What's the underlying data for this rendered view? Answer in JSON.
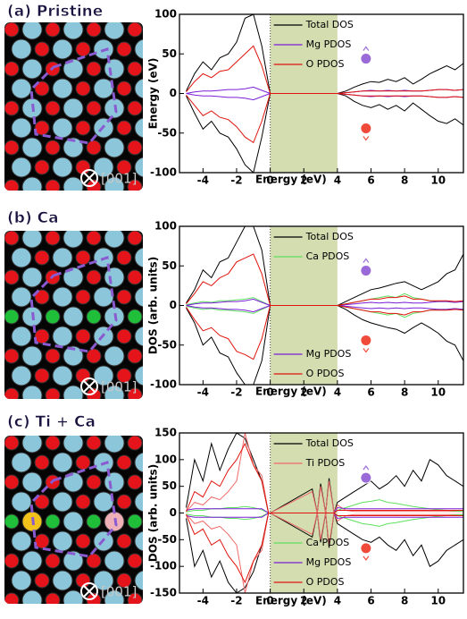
{
  "chart_data": [
    {
      "type": "line",
      "title": "(a) Pristine",
      "direction_label": "[001]",
      "xlabel": "Energy (eV)",
      "ylabel": "Energy (eV)",
      "xlim": [
        -5.4,
        11.5
      ],
      "xticks": [
        -4,
        -2,
        0,
        2,
        4,
        6,
        8,
        10
      ],
      "ylim": [
        -100,
        100
      ],
      "yticks": [
        -100,
        -50,
        0,
        50,
        100
      ],
      "shade": [
        0,
        4
      ],
      "shade_color": "#d3ddb0",
      "x": [
        -5,
        -4.5,
        -4,
        -3.5,
        -3,
        -2.5,
        -2,
        -1.5,
        -1,
        -0.5,
        0,
        4,
        4.5,
        5,
        5.5,
        6,
        6.5,
        7,
        7.5,
        8,
        8.5,
        9,
        9.5,
        10,
        10.5,
        11,
        11.5
      ],
      "series": [
        {
          "name": "Total DOS",
          "color": "#000000",
          "legend": "top",
          "values": [
            3,
            25,
            40,
            30,
            45,
            50,
            65,
            95,
            100,
            60,
            0,
            0,
            3,
            8,
            12,
            15,
            14,
            18,
            15,
            20,
            12,
            18,
            25,
            30,
            35,
            30,
            38
          ],
          "values_down": [
            -3,
            -25,
            -45,
            -35,
            -50,
            -55,
            -70,
            -90,
            -100,
            -55,
            0,
            0,
            -3,
            -10,
            -15,
            -18,
            -14,
            -20,
            -15,
            -22,
            -12,
            -20,
            -28,
            -35,
            -38,
            -32,
            -40
          ]
        },
        {
          "name": "Mg PDOS",
          "color": "#7b1fd8",
          "legend": "top",
          "values": [
            0,
            2,
            3,
            3,
            4,
            5,
            5,
            6,
            8,
            4,
            0,
            0,
            1,
            2,
            3,
            4,
            3,
            4,
            3,
            4,
            3,
            3,
            4,
            5,
            5,
            4,
            5
          ],
          "values_down": [
            0,
            -2,
            -3,
            -3,
            -4,
            -5,
            -5,
            -6,
            -8,
            -4,
            0,
            0,
            -1,
            -2,
            -3,
            -4,
            -3,
            -4,
            -3,
            -4,
            -3,
            -3,
            -4,
            -5,
            -5,
            -4,
            -5
          ]
        },
        {
          "name": "O PDOS",
          "color": "#e0140c",
          "legend": "top",
          "values": [
            2,
            15,
            25,
            20,
            28,
            30,
            40,
            50,
            60,
            35,
            0,
            0,
            1,
            2,
            3,
            3,
            3,
            3,
            3,
            3,
            3,
            3,
            4,
            5,
            5,
            4,
            5
          ],
          "values_down": [
            -2,
            -15,
            -28,
            -22,
            -30,
            -33,
            -42,
            -55,
            -62,
            -35,
            0,
            0,
            -1,
            -2,
            -3,
            -3,
            -3,
            -3,
            -3,
            -3,
            -3,
            -3,
            -4,
            -5,
            -5,
            -4,
            -5
          ]
        }
      ]
    },
    {
      "type": "line",
      "title": "(b) Ca",
      "direction_label": "[001]",
      "xlabel": "Energy (eV)",
      "ylabel": "DOS (arb. units)",
      "xlim": [
        -5.4,
        11.5
      ],
      "xticks": [
        -4,
        -2,
        0,
        2,
        4,
        6,
        8,
        10
      ],
      "ylim": [
        -100,
        100
      ],
      "yticks": [
        -100,
        -50,
        0,
        50,
        100
      ],
      "shade": [
        0,
        4
      ],
      "shade_color": "#d3ddb0",
      "x": [
        -5,
        -4.5,
        -4,
        -3.5,
        -3,
        -2.5,
        -2,
        -1.5,
        -1,
        -0.5,
        0,
        4,
        4.5,
        5,
        5.5,
        6,
        6.5,
        7,
        7.5,
        8,
        8.5,
        9,
        9.5,
        10,
        10.5,
        11,
        11.5
      ],
      "series": [
        {
          "name": "Total DOS",
          "color": "#000000",
          "legend": "top",
          "values": [
            3,
            20,
            45,
            35,
            55,
            60,
            80,
            100,
            100,
            70,
            0,
            0,
            5,
            10,
            15,
            20,
            22,
            25,
            28,
            30,
            25,
            20,
            25,
            30,
            40,
            45,
            65
          ],
          "values_down": [
            -3,
            -22,
            -50,
            -40,
            -60,
            -65,
            -85,
            -100,
            -100,
            -70,
            0,
            0,
            -5,
            -12,
            -18,
            -22,
            -25,
            -28,
            -30,
            -35,
            -28,
            -22,
            -28,
            -35,
            -45,
            -50,
            -70
          ]
        },
        {
          "name": "Ca PDOS",
          "color": "#5fe05f",
          "legend": "top",
          "values": [
            1,
            3,
            5,
            4,
            6,
            6,
            7,
            8,
            10,
            5,
            0,
            0,
            2,
            4,
            6,
            8,
            10,
            12,
            10,
            15,
            10,
            8,
            6,
            5,
            5,
            4,
            5
          ],
          "values_down": [
            -1,
            -3,
            -5,
            -4,
            -6,
            -6,
            -7,
            -8,
            -10,
            -5,
            0,
            0,
            -2,
            -4,
            -6,
            -8,
            -10,
            -12,
            -10,
            -15,
            -10,
            -8,
            -6,
            -5,
            -5,
            -4,
            -5
          ]
        },
        {
          "name": "Mg PDOS",
          "color": "#7b1fd8",
          "legend": "bottom",
          "values": [
            0,
            2,
            3,
            3,
            4,
            5,
            5,
            6,
            8,
            4,
            0,
            0,
            1,
            2,
            3,
            4,
            3,
            4,
            3,
            4,
            3,
            3,
            4,
            5,
            5,
            4,
            5
          ],
          "values_down": [
            0,
            -2,
            -3,
            -3,
            -4,
            -5,
            -5,
            -6,
            -8,
            -4,
            0,
            0,
            -1,
            -2,
            -3,
            -4,
            -3,
            -4,
            -3,
            -4,
            -3,
            -3,
            -4,
            -5,
            -5,
            -4,
            -5
          ]
        },
        {
          "name": "O PDOS",
          "color": "#e0140c",
          "legend": "bottom",
          "values": [
            2,
            15,
            30,
            25,
            35,
            40,
            55,
            60,
            65,
            40,
            0,
            0,
            2,
            4,
            6,
            8,
            8,
            10,
            10,
            12,
            8,
            8,
            6,
            6,
            6,
            5,
            6
          ],
          "values_down": [
            -2,
            -18,
            -32,
            -28,
            -38,
            -42,
            -58,
            -62,
            -68,
            -42,
            0,
            0,
            -2,
            -4,
            -6,
            -8,
            -8,
            -10,
            -10,
            -12,
            -8,
            -8,
            -6,
            -6,
            -6,
            -5,
            -6
          ]
        }
      ]
    },
    {
      "type": "line",
      "title": "(c) Ti + Ca",
      "direction_label": "[001]",
      "xlabel": "Energy (eV)",
      "ylabel": "DOS (arb. units)",
      "xlim": [
        -5.4,
        11.5
      ],
      "xticks": [
        -4,
        -2,
        0,
        2,
        4,
        6,
        8,
        10
      ],
      "ylim": [
        -150,
        150
      ],
      "yticks": [
        -150,
        -100,
        -50,
        0,
        50,
        100,
        150
      ],
      "shade": [
        0,
        4
      ],
      "shade_color": "#d3ddb0",
      "x": [
        -5,
        -4.5,
        -4,
        -3.5,
        -3,
        -2.5,
        -2,
        -1.5,
        -1,
        -0.5,
        -0.1,
        0,
        2.5,
        2.8,
        3,
        3.3,
        3.5,
        3.8,
        4,
        4.5,
        5,
        5.5,
        6,
        6.5,
        7,
        7.5,
        8,
        8.5,
        9,
        9.5,
        10,
        10.5,
        11,
        11.5
      ],
      "series": [
        {
          "name": "Total DOS",
          "color": "#000000",
          "legend": "top",
          "values": [
            10,
            100,
            60,
            130,
            80,
            120,
            150,
            140,
            100,
            60,
            0,
            0,
            45,
            0,
            55,
            0,
            65,
            0,
            20,
            30,
            40,
            50,
            60,
            45,
            55,
            70,
            50,
            80,
            60,
            100,
            90,
            70,
            60,
            50
          ],
          "values_down": [
            -10,
            -100,
            -70,
            -120,
            -90,
            -130,
            -150,
            -140,
            -110,
            -60,
            0,
            0,
            -45,
            0,
            -55,
            0,
            -65,
            0,
            -20,
            -30,
            -40,
            -50,
            -55,
            -45,
            -60,
            -70,
            -50,
            -80,
            -60,
            -100,
            -90,
            -70,
            -60,
            -50
          ]
        },
        {
          "name": "Ti PDOS",
          "color": "#f06a6a",
          "legend": "top",
          "values": [
            2,
            20,
            15,
            30,
            25,
            40,
            60,
            150,
            90,
            70,
            0,
            0,
            40,
            0,
            50,
            0,
            60,
            0,
            15,
            5,
            3,
            3,
            3,
            3,
            3,
            3,
            3,
            3,
            3,
            3,
            3,
            3,
            3,
            3
          ],
          "values_down": [
            -2,
            -20,
            -15,
            -30,
            -25,
            -40,
            -60,
            -150,
            -90,
            -70,
            0,
            0,
            -40,
            0,
            -50,
            0,
            -60,
            0,
            -15,
            -5,
            -3,
            -3,
            -3,
            -3,
            -3,
            -3,
            -3,
            -3,
            -3,
            -3,
            -3,
            -3,
            -3,
            -3
          ]
        },
        {
          "name": "Ca PDOS",
          "color": "#5fe05f",
          "legend": "bottom",
          "values": [
            2,
            5,
            5,
            8,
            8,
            10,
            10,
            12,
            10,
            6,
            0,
            0,
            0,
            0,
            0,
            0,
            0,
            0,
            5,
            10,
            15,
            20,
            22,
            25,
            20,
            18,
            15,
            12,
            10,
            8,
            6,
            5,
            4,
            3
          ],
          "values_down": [
            -2,
            -5,
            -5,
            -8,
            -8,
            -10,
            -10,
            -12,
            -10,
            -6,
            0,
            0,
            0,
            0,
            0,
            0,
            0,
            0,
            -5,
            -10,
            -15,
            -20,
            -22,
            -25,
            -20,
            -18,
            -15,
            -12,
            -10,
            -8,
            -6,
            -5,
            -4,
            -3
          ]
        },
        {
          "name": "Mg PDOS",
          "color": "#7b1fd8",
          "legend": "bottom",
          "values": [
            5,
            8,
            8,
            8,
            8,
            8,
            8,
            8,
            8,
            8,
            0,
            0,
            0,
            0,
            0,
            0,
            0,
            0,
            10,
            8,
            8,
            8,
            8,
            8,
            8,
            8,
            8,
            8,
            8,
            8,
            8,
            8,
            8,
            8
          ],
          "values_down": [
            -5,
            -8,
            -8,
            -8,
            -8,
            -8,
            -8,
            -8,
            -8,
            -8,
            0,
            0,
            0,
            0,
            0,
            0,
            0,
            0,
            -10,
            -8,
            -8,
            -8,
            -8,
            -8,
            -8,
            -8,
            -8,
            -8,
            -8,
            -8,
            -8,
            -8,
            -8,
            -8
          ]
        },
        {
          "name": "O PDOS",
          "color": "#e0140c",
          "legend": "bottom",
          "values": [
            3,
            40,
            30,
            60,
            50,
            80,
            100,
            130,
            90,
            60,
            0,
            0,
            0,
            0,
            0,
            0,
            0,
            0,
            5,
            5,
            5,
            5,
            5,
            5,
            5,
            5,
            5,
            5,
            5,
            5,
            5,
            5,
            5,
            5
          ],
          "values_down": [
            -3,
            -40,
            -30,
            -60,
            -50,
            -80,
            -100,
            -130,
            -90,
            -60,
            0,
            0,
            0,
            0,
            0,
            0,
            0,
            0,
            -5,
            -5,
            -5,
            -5,
            -5,
            -5,
            -5,
            -5,
            -5,
            -5,
            -5,
            -5,
            -5,
            -5,
            -5,
            -5
          ]
        }
      ]
    }
  ]
}
